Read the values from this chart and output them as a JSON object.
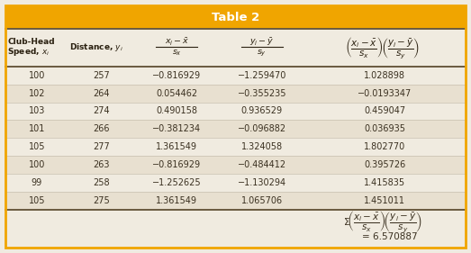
{
  "title": "Table 2",
  "title_bg": "#F0A500",
  "title_color": "#ffffff",
  "bg_color": "#F0EBE0",
  "outer_bg": "#E8E0D0",
  "text_color": "#3A3020",
  "bold_color": "#2A2010",
  "line_color": "#6A5A40",
  "sep_color": "#C8C0B0",
  "rows": [
    [
      "100",
      "257",
      "−0.816929",
      "−1.259470",
      "1.028898"
    ],
    [
      "102",
      "264",
      "0.054462",
      "−0.355235",
      "−0.0193347"
    ],
    [
      "103",
      "274",
      "0.490158",
      "0.936529",
      "0.459047"
    ],
    [
      "101",
      "266",
      "−0.381234",
      "−0.096882",
      "0.036935"
    ],
    [
      "105",
      "277",
      "1.361549",
      "1.324058",
      "1.802770"
    ],
    [
      "100",
      "263",
      "−0.816929",
      "−0.484412",
      "0.395726"
    ],
    [
      "99",
      "258",
      "−1.252625",
      "−1.130294",
      "1.415835"
    ],
    [
      "105",
      "275",
      "1.361549",
      "1.065706",
      "1.451011"
    ]
  ],
  "sum_value": "= 6.570887",
  "figwidth": 5.23,
  "figheight": 2.81,
  "dpi": 100
}
